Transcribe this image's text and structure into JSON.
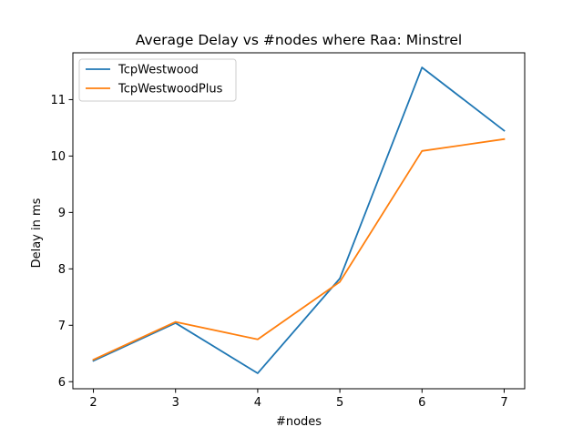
{
  "chart_data": {
    "type": "line",
    "title": "Average Delay vs #nodes where Raa: Minstrel",
    "xlabel": "#nodes",
    "ylabel": "Delay in ms",
    "x": [
      2,
      3,
      4,
      5,
      6,
      7
    ],
    "xticks": [
      2,
      3,
      4,
      5,
      6,
      7
    ],
    "yticks": [
      6,
      7,
      8,
      9,
      10,
      11
    ],
    "xlim": [
      1.75,
      7.25
    ],
    "ylim": [
      5.875,
      11.83
    ],
    "grid": false,
    "legend": "top-left",
    "series": [
      {
        "name": "TcpWestwood",
        "color": "#1f77b4",
        "values": [
          6.37,
          7.04,
          6.15,
          7.83,
          11.57,
          10.45
        ]
      },
      {
        "name": "TcpWestwoodPlus",
        "color": "#ff7f0e",
        "values": [
          6.39,
          7.06,
          6.75,
          7.77,
          10.09,
          10.3
        ]
      }
    ]
  }
}
